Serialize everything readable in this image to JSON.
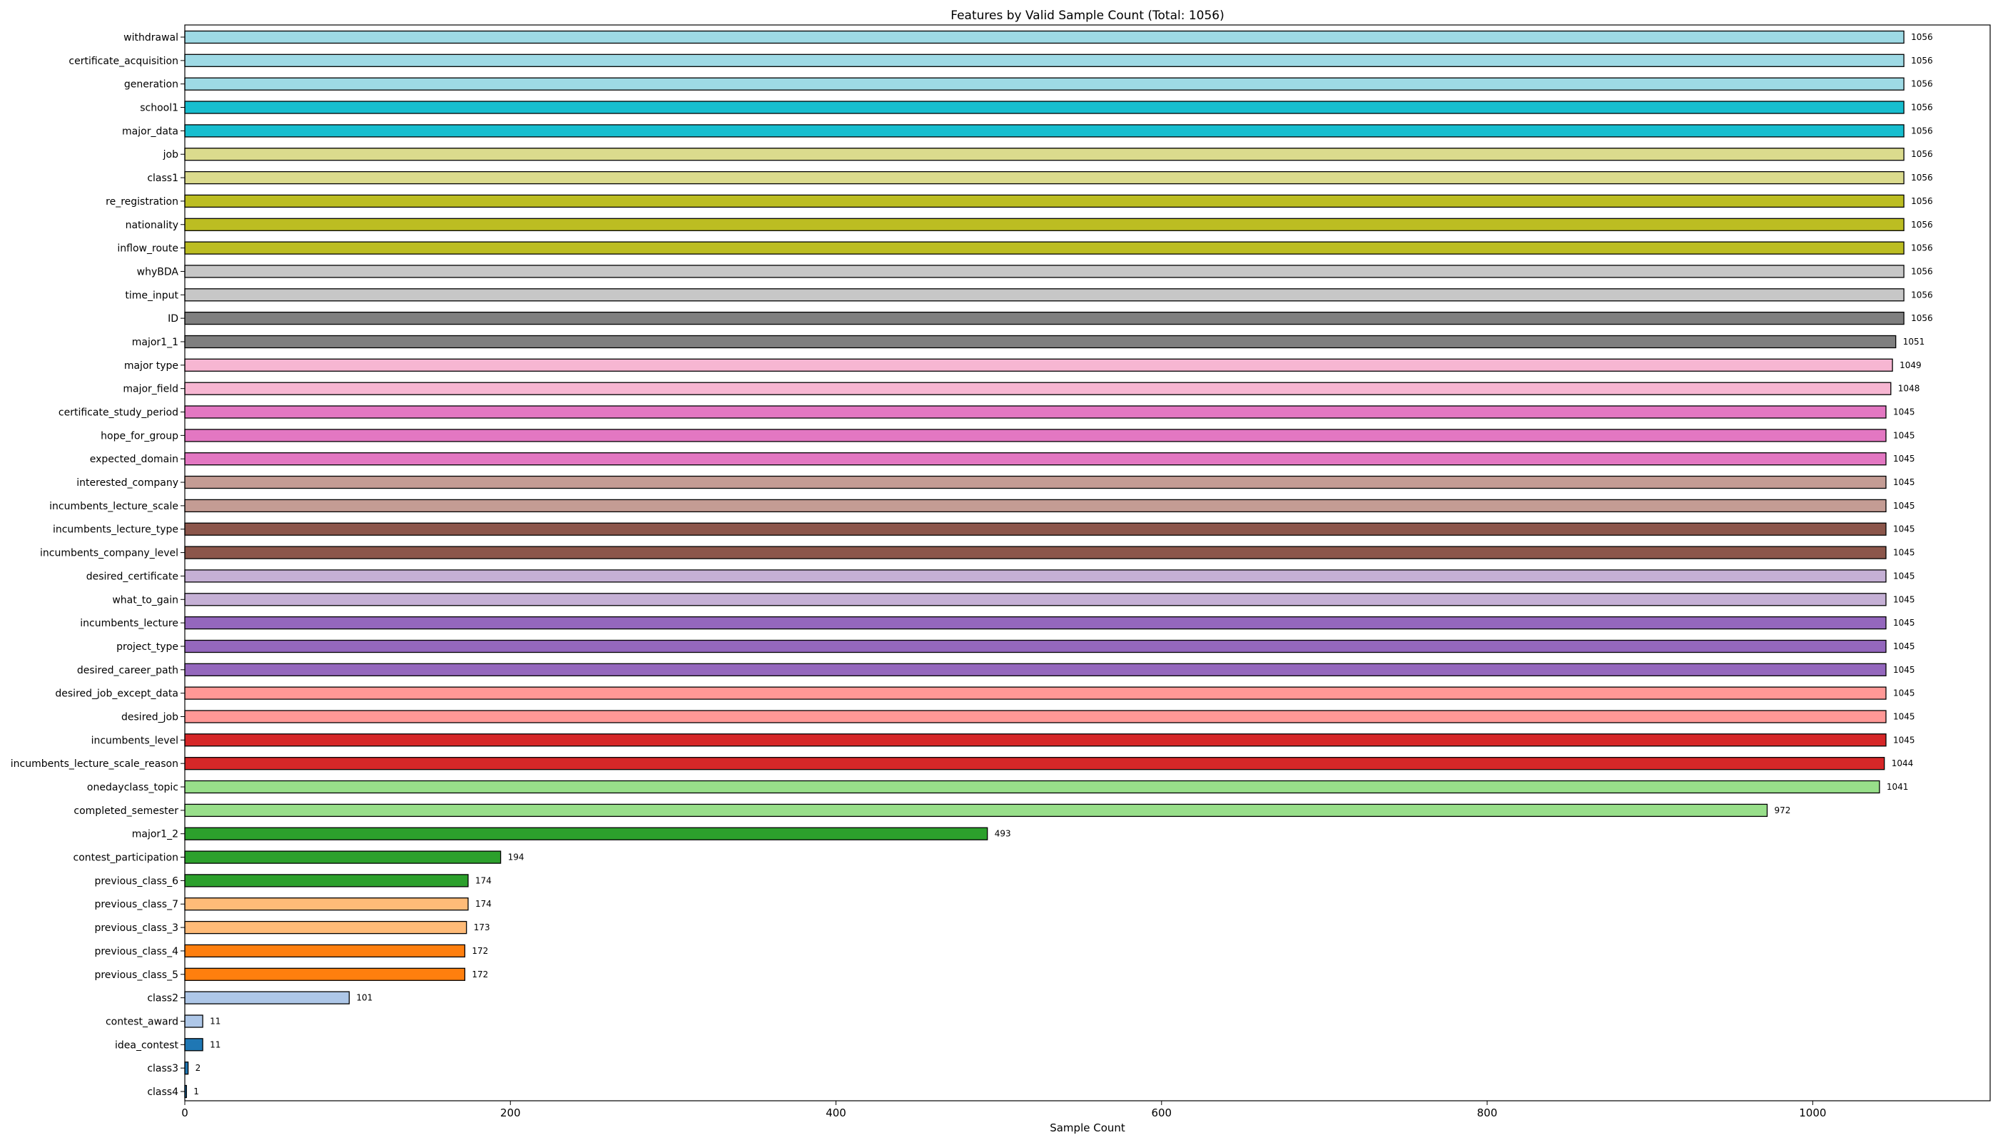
{
  "chart_data": {
    "type": "bar",
    "orientation": "horizontal",
    "title": "Features by Valid Sample Count (Total: 1056)",
    "xlabel": "Sample Count",
    "ylabel": "",
    "xlim": [
      0,
      1109
    ],
    "xticks": [
      0,
      200,
      400,
      600,
      800,
      1000
    ],
    "grid": false,
    "bar_edge_color": "#000000",
    "categories": [
      "withdrawal",
      "certificate_acquisition",
      "generation",
      "school1",
      "major_data",
      "job",
      "class1",
      "re_registration",
      "nationality",
      "inflow_route",
      "whyBDA",
      "time_input",
      "ID",
      "major1_1",
      "major type",
      "major_field",
      "certificate_study_period",
      "hope_for_group",
      "expected_domain",
      "interested_company",
      "incumbents_lecture_scale",
      "incumbents_lecture_type",
      "incumbents_company_level",
      "desired_certificate",
      "what_to_gain",
      "incumbents_lecture",
      "project_type",
      "desired_career_path",
      "desired_job_except_data",
      "desired_job",
      "incumbents_level",
      "incumbents_lecture_scale_reason",
      "onedayclass_topic",
      "completed_semester",
      "major1_2",
      "contest_participation",
      "previous_class_6",
      "previous_class_7",
      "previous_class_3",
      "previous_class_4",
      "previous_class_5",
      "class2",
      "contest_award",
      "idea_contest",
      "class3",
      "class4"
    ],
    "values": [
      1056,
      1056,
      1056,
      1056,
      1056,
      1056,
      1056,
      1056,
      1056,
      1056,
      1056,
      1056,
      1056,
      1051,
      1049,
      1048,
      1045,
      1045,
      1045,
      1045,
      1045,
      1045,
      1045,
      1045,
      1045,
      1045,
      1045,
      1045,
      1045,
      1045,
      1045,
      1044,
      1041,
      972,
      493,
      194,
      174,
      174,
      173,
      172,
      172,
      101,
      11,
      11,
      2,
      1
    ],
    "colors": [
      "#9edae5",
      "#9edae5",
      "#9edae5",
      "#17becf",
      "#17becf",
      "#dbdb8d",
      "#dbdb8d",
      "#bcbd22",
      "#bcbd22",
      "#bcbd22",
      "#c7c7c7",
      "#c7c7c7",
      "#7f7f7f",
      "#7f7f7f",
      "#f7b6d2",
      "#f7b6d2",
      "#e377c2",
      "#e377c2",
      "#e377c2",
      "#c49c94",
      "#c49c94",
      "#8c564b",
      "#8c564b",
      "#c5b0d5",
      "#c5b0d5",
      "#9467bd",
      "#9467bd",
      "#9467bd",
      "#ff9896",
      "#ff9896",
      "#d62728",
      "#d62728",
      "#98df8a",
      "#98df8a",
      "#2ca02c",
      "#2ca02c",
      "#2ca02c",
      "#ffbb78",
      "#ffbb78",
      "#ff7f0e",
      "#ff7f0e",
      "#aec7e8",
      "#aec7e8",
      "#1f77b4",
      "#1f77b4",
      "#1f77b4"
    ]
  }
}
